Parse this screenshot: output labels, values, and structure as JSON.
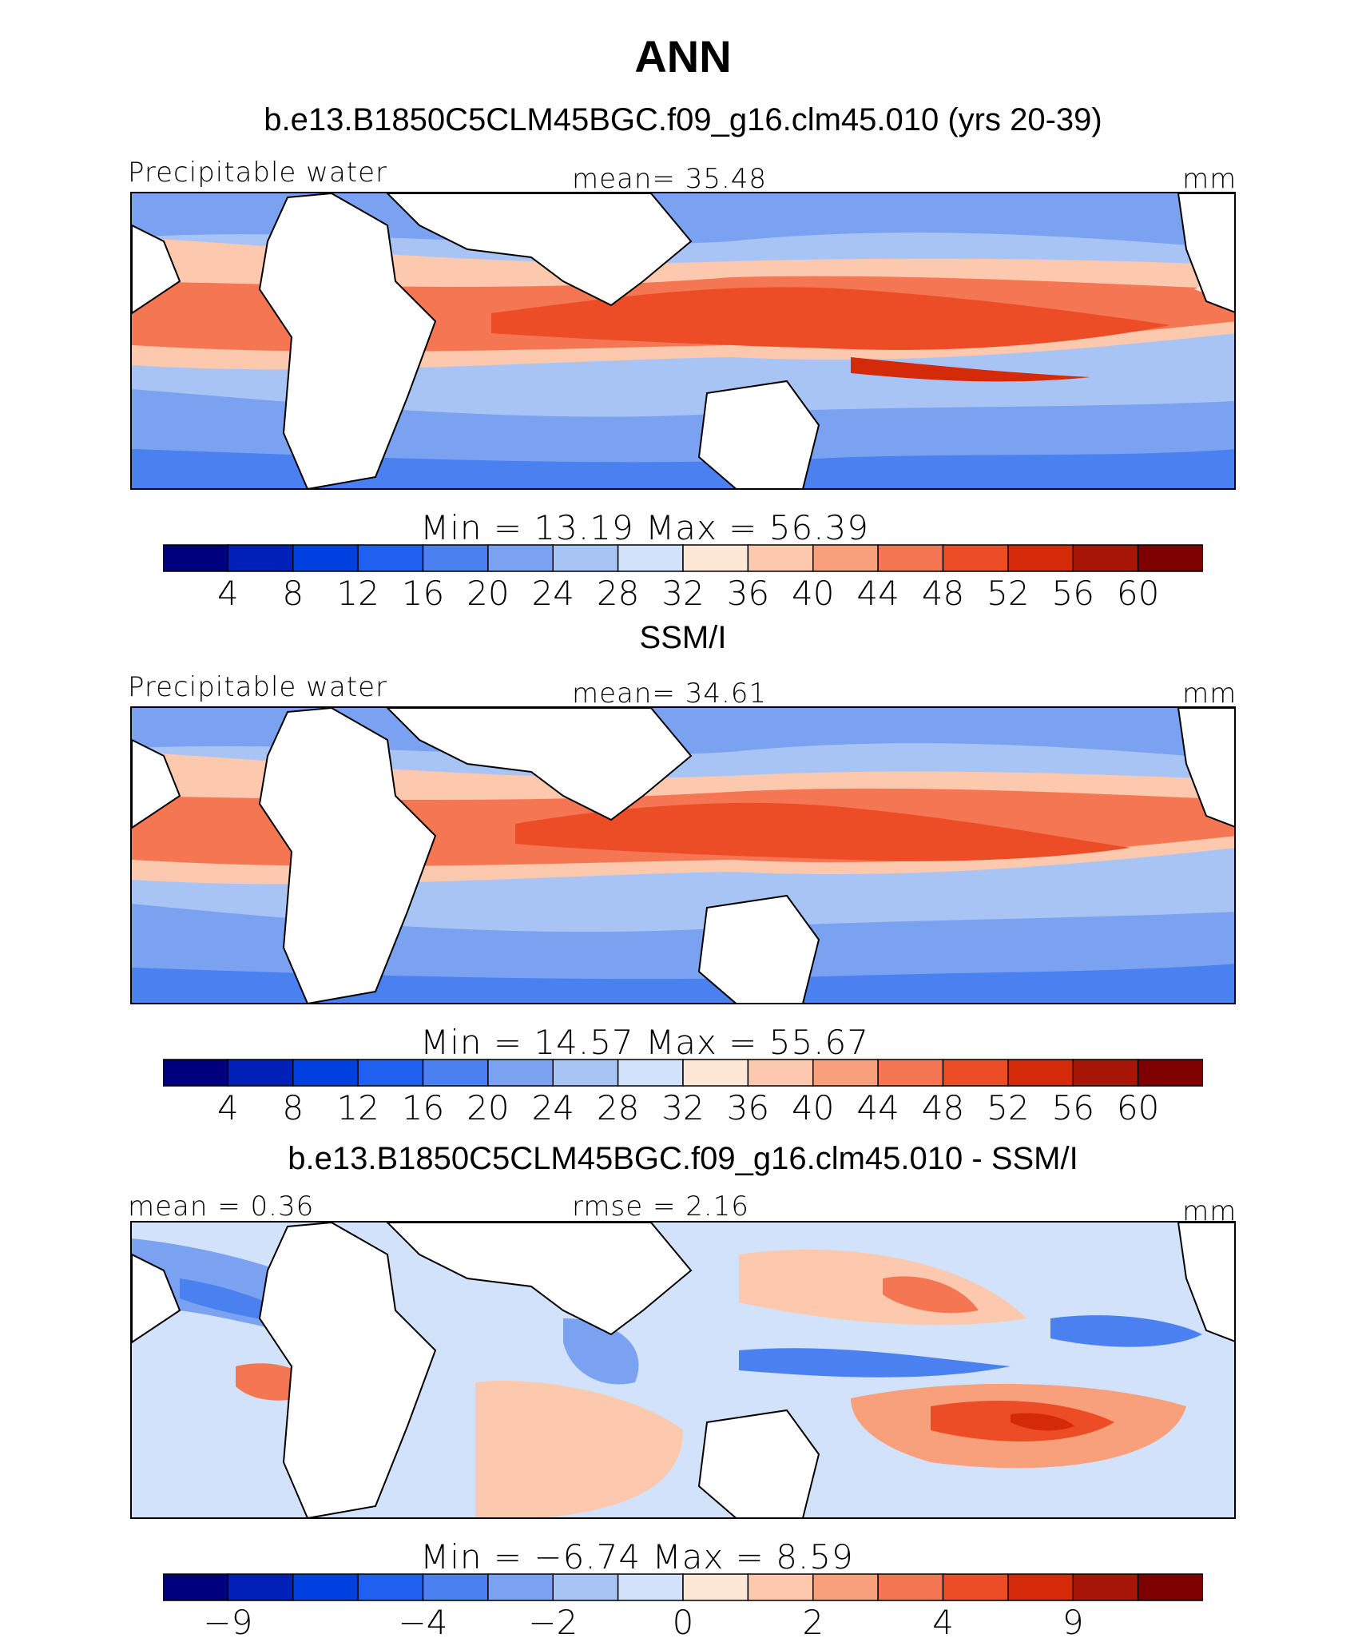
{
  "title": "ANN",
  "colors": {
    "seq": [
      "#00007f",
      "#0020b8",
      "#0040e0",
      "#2060f0",
      "#4a80f0",
      "#7aa2f0",
      "#a8c4f4",
      "#d2e2fa",
      "#fde8d8",
      "#fcc8ae",
      "#f8a07c",
      "#f47652",
      "#ec4c26",
      "#d42a0a",
      "#a81608",
      "#7e0000"
    ],
    "land": "#ffffff",
    "border": "#000000"
  },
  "panels": [
    {
      "id": "model",
      "subtitle": "b.e13.B1850C5CLM45BGC.f09_g16.clm45.010 (yrs 20-39)",
      "left_label": "Precipitable water",
      "center_label": "mean=   35.48",
      "unit": "mm",
      "stats": "Min  =   13.19  Max  =   56.39",
      "ticks": [
        "4",
        "8",
        "12",
        "16",
        "20",
        "24",
        "28",
        "32",
        "36",
        "40",
        "44",
        "48",
        "52",
        "56",
        "60"
      ]
    },
    {
      "id": "obs",
      "subtitle": "SSM/I",
      "left_label": "Precipitable water",
      "center_label": "mean=   34.61",
      "unit": "mm",
      "stats": "Min  =   14.57  Max  =   55.67",
      "ticks": [
        "4",
        "8",
        "12",
        "16",
        "20",
        "24",
        "28",
        "32",
        "36",
        "40",
        "44",
        "48",
        "52",
        "56",
        "60"
      ]
    },
    {
      "id": "diff",
      "subtitle": "b.e13.B1850C5CLM45BGC.f09_g16.clm45.010 - SSM/I",
      "left_label": "mean =    0.36",
      "center_label": "rmse  =    2.16",
      "unit": "mm",
      "stats": "Min  =   −6.74  Max  =     8.59",
      "ticks": [
        "−9",
        "−4",
        "−2",
        "0",
        "2",
        "4",
        "9"
      ]
    }
  ]
}
